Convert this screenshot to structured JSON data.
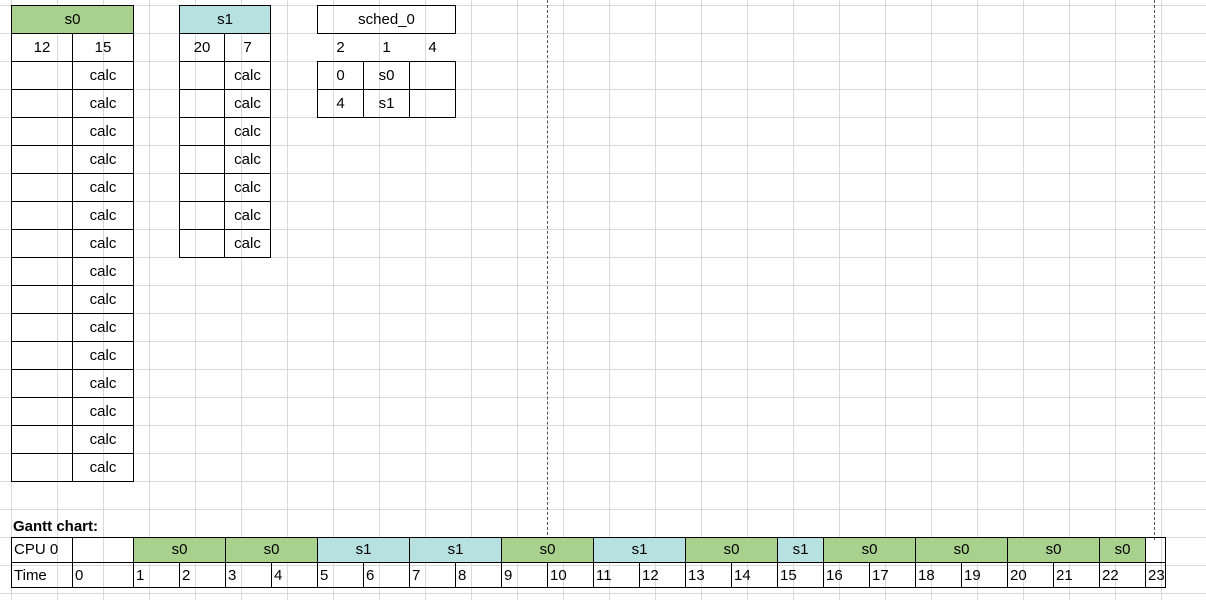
{
  "s0": {
    "title": "s0",
    "cols": [
      "12",
      "15"
    ],
    "rows": [
      "calc",
      "calc",
      "calc",
      "calc",
      "calc",
      "calc",
      "calc",
      "calc",
      "calc",
      "calc",
      "calc",
      "calc",
      "calc",
      "calc",
      "calc"
    ]
  },
  "s1": {
    "title": "s1",
    "cols": [
      "20",
      "7"
    ],
    "rows": [
      "calc",
      "calc",
      "calc",
      "calc",
      "calc",
      "calc",
      "calc"
    ]
  },
  "sched": {
    "title": "sched_0",
    "cols": [
      "2",
      "1",
      "4"
    ],
    "rows": [
      [
        "0",
        "s0",
        ""
      ],
      [
        "4",
        "s1",
        ""
      ]
    ]
  },
  "gantt": {
    "title": "Gantt chart:",
    "cpu_label": "CPU 0",
    "time_label": "Time",
    "segments": [
      "s0",
      "s0",
      "s1",
      "s1",
      "s0",
      "s1",
      "s0",
      "s1",
      "s0",
      "s0",
      "s0",
      "s0"
    ],
    "times": [
      "0",
      "1",
      "2",
      "3",
      "4",
      "5",
      "6",
      "7",
      "8",
      "9",
      "10",
      "11",
      "12",
      "13",
      "14",
      "15",
      "16",
      "17",
      "18",
      "19",
      "20",
      "21",
      "22",
      "23"
    ]
  },
  "colors": {
    "s0": "#a9d18e",
    "s1": "#b7e1e1"
  }
}
